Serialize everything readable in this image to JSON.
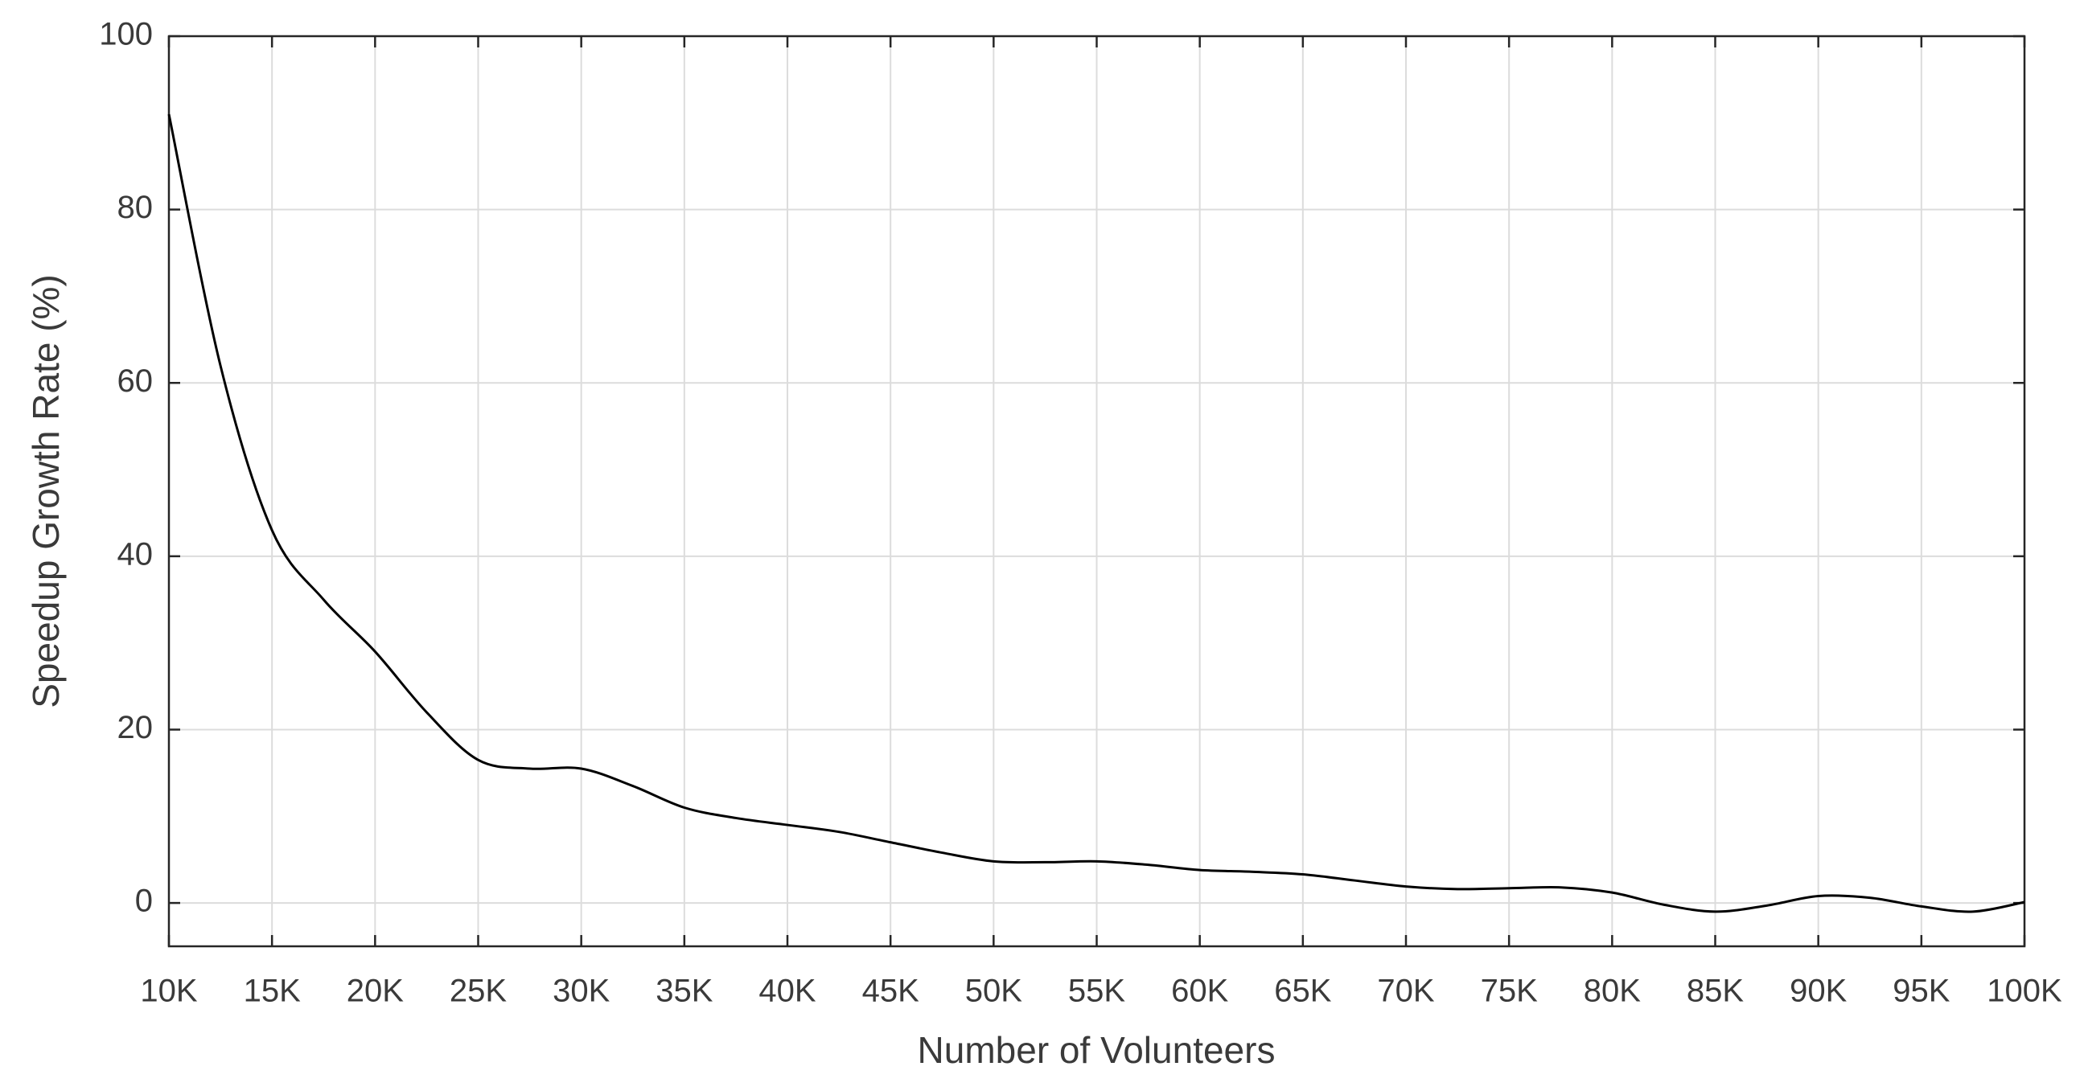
{
  "chart_data": {
    "type": "line",
    "xlabel": "Number of Volunteers",
    "ylabel": "Speedup Growth Rate (%)",
    "x": [
      10000,
      12500,
      15000,
      17500,
      20000,
      22500,
      25000,
      27500,
      30000,
      32500,
      35000,
      37500,
      40000,
      42500,
      45000,
      47500,
      50000,
      52500,
      55000,
      57500,
      60000,
      62500,
      65000,
      67500,
      70000,
      72500,
      75000,
      77500,
      80000,
      82500,
      85000,
      87500,
      90000,
      92500,
      95000,
      97500,
      100000
    ],
    "series": [
      {
        "color": "#000000",
        "values": [
          91,
          62,
          43,
          35,
          29,
          22,
          16.5,
          15.5,
          15.5,
          13.5,
          11,
          9.8,
          9,
          8.2,
          7,
          5.8,
          4.8,
          4.7,
          4.8,
          4.4,
          3.8,
          3.6,
          3.3,
          2.6,
          1.9,
          1.6,
          1.7,
          1.8,
          1.2,
          -0.2,
          -1,
          -0.3,
          0.8,
          0.6,
          -0.4,
          -1,
          0.1
        ]
      }
    ],
    "xlim": [
      10000,
      100000
    ],
    "xticks": [
      {
        "value": 10000,
        "label": "10K"
      },
      {
        "value": 15000,
        "label": "15K"
      },
      {
        "value": 20000,
        "label": "20K"
      },
      {
        "value": 25000,
        "label": "25K"
      },
      {
        "value": 30000,
        "label": "30K"
      },
      {
        "value": 35000,
        "label": "35K"
      },
      {
        "value": 40000,
        "label": "40K"
      },
      {
        "value": 45000,
        "label": "45K"
      },
      {
        "value": 50000,
        "label": "50K"
      },
      {
        "value": 55000,
        "label": "55K"
      },
      {
        "value": 60000,
        "label": "60K"
      },
      {
        "value": 65000,
        "label": "65K"
      },
      {
        "value": 70000,
        "label": "70K"
      },
      {
        "value": 75000,
        "label": "75K"
      },
      {
        "value": 80000,
        "label": "80K"
      },
      {
        "value": 85000,
        "label": "85K"
      },
      {
        "value": 90000,
        "label": "90K"
      },
      {
        "value": 95000,
        "label": "95K"
      },
      {
        "value": 100000,
        "label": "100K"
      }
    ],
    "ylim": [
      -5,
      100
    ],
    "yticks": [
      0,
      20,
      40,
      60,
      80,
      100
    ],
    "grid": true
  }
}
